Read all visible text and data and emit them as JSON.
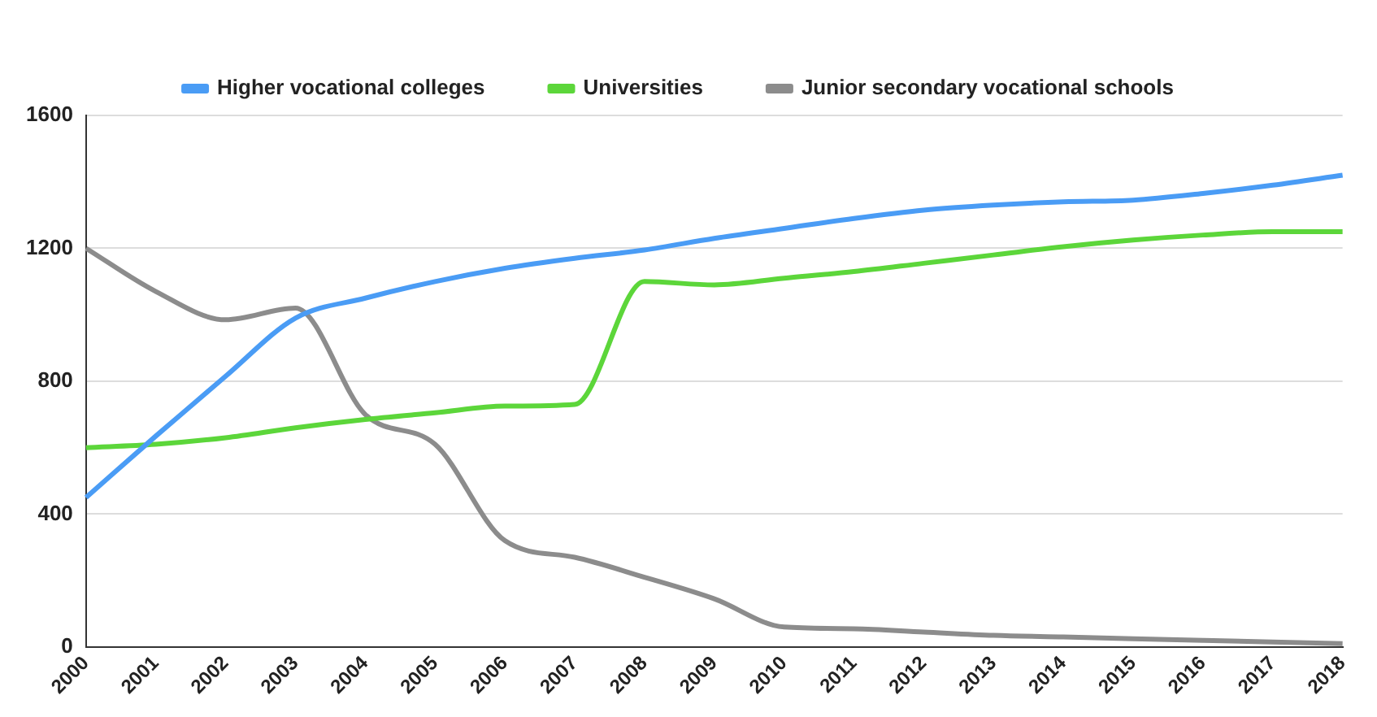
{
  "chart_data": {
    "type": "line",
    "categories": [
      "2000",
      "2001",
      "2002",
      "2003",
      "2004",
      "2005",
      "2006",
      "2007",
      "2008",
      "2009",
      "2010",
      "2011",
      "2012",
      "2013",
      "2014",
      "2015",
      "2016",
      "2017",
      "2018"
    ],
    "series": [
      {
        "name": "Higher vocational colleges",
        "color": "#4a9cf5",
        "values": [
          450,
          635,
          815,
          990,
          1050,
          1100,
          1140,
          1170,
          1195,
          1230,
          1260,
          1290,
          1315,
          1330,
          1340,
          1345,
          1365,
          1390,
          1420
        ]
      },
      {
        "name": "Universities",
        "color": "#5cd63a",
        "values": [
          600,
          610,
          630,
          660,
          685,
          705,
          725,
          730,
          1100,
          1090,
          1110,
          1130,
          1155,
          1180,
          1205,
          1225,
          1240,
          1250,
          1250
        ]
      },
      {
        "name": "Junior secondary vocational schools",
        "color": "#8c8c8c",
        "values": [
          1200,
          1070,
          985,
          1020,
          700,
          610,
          320,
          270,
          210,
          145,
          60,
          55,
          45,
          35,
          30,
          25,
          20,
          15,
          10
        ]
      }
    ],
    "ylim": [
      0,
      1600
    ],
    "yticks": [
      0,
      400,
      800,
      1200,
      1600
    ],
    "grid": "y",
    "legend": "top",
    "marker": "none",
    "line_style": "solid"
  }
}
